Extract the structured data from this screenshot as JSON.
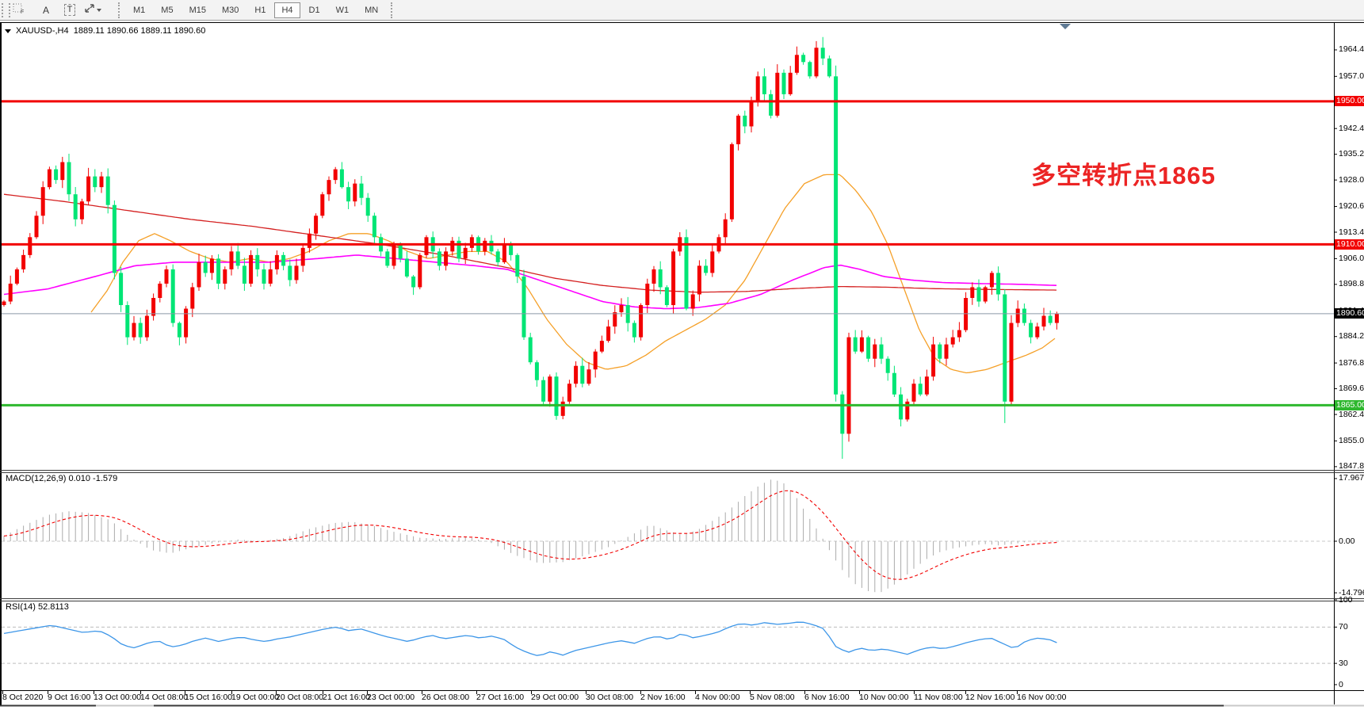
{
  "toolbar": {
    "tool_a_label": "A",
    "tool_t_label": "T",
    "timeframes": [
      "M1",
      "M5",
      "M15",
      "M30",
      "H1",
      "H4",
      "D1",
      "W1",
      "MN"
    ],
    "active_timeframe": "H4"
  },
  "window": {
    "symbol_header": "XAUUSD-,H4  1889.11 1890.66 1889.11 1890.60"
  },
  "annotation": {
    "text": "多空转折点1865",
    "color": "#ec2424"
  },
  "indicators": {
    "macd_label": "MACD(12,26,9) 0.010 -1.579",
    "rsi_label": "RSI(14) 52.8113"
  },
  "axes": {
    "price_ticks": [
      "1964.40",
      "1957.00",
      "1942.40",
      "1935.20",
      "1928.00",
      "1920.60",
      "1913.40",
      "1906.00",
      "1898.80",
      "1891.40",
      "1884.20",
      "1876.80",
      "1869.60",
      "1862.40",
      "1855.00",
      "1847.80"
    ],
    "macd_ticks": [
      "17.967",
      "0.00",
      "-14.796"
    ],
    "rsi_ticks": [
      "100",
      "70",
      "30",
      "0"
    ],
    "dates": [
      "8 Oct 2020",
      "9 Oct 16:00",
      "13 Oct 00:00",
      "14 Oct 08:00",
      "15 Oct 16:00",
      "19 Oct 00:00",
      "20 Oct 08:00",
      "21 Oct 16:00",
      "23 Oct 00:00",
      "26 Oct 08:00",
      "27 Oct 16:00",
      "29 Oct 00:00",
      "30 Oct 08:00",
      "2 Nov 16:00",
      "4 Nov 00:00",
      "5 Nov 08:00",
      "6 Nov 16:00",
      "10 Nov 00:00",
      "11 Nov 08:00",
      "12 Nov 16:00",
      "16 Nov 00:00"
    ],
    "dates_x": [
      3,
      60,
      118,
      177,
      233,
      292,
      348,
      407,
      463,
      532,
      601,
      670,
      739,
      808,
      877,
      946,
      1015,
      1084,
      1153,
      1218,
      1283
    ]
  },
  "badges": [
    {
      "label": "1950.00",
      "price": 1950,
      "color": "#f20000"
    },
    {
      "label": "1910.00",
      "price": 1910,
      "color": "#f20000"
    },
    {
      "label": "1890.60",
      "price": 1890.6,
      "color": "#000000"
    },
    {
      "label": "1865.00",
      "price": 1865,
      "color": "#2eb82e"
    }
  ],
  "chart_data": {
    "type": "candlestick",
    "symbol": "XAUUSD-",
    "timeframe": "H4",
    "ohlc_header": {
      "open": "1889.11",
      "high": "1890.66",
      "low": "1889.11",
      "close": "1890.60"
    },
    "up_color": "#f20000",
    "down_color": "#00e575",
    "closes": [
      1894,
      1899,
      1903,
      1907,
      1912,
      1918,
      1926,
      1931,
      1928,
      1933,
      1924,
      1917,
      1922,
      1929,
      1926,
      1929,
      1921,
      1902,
      1893,
      1884,
      1888,
      1884,
      1890,
      1895,
      1899,
      1903,
      1888,
      1884,
      1892,
      1898,
      1905,
      1902,
      1906,
      1899,
      1903,
      1908,
      1904,
      1899,
      1907,
      1903,
      1899,
      1903,
      1907,
      1904,
      1900,
      1904,
      1909,
      1913,
      1918,
      1924,
      1928,
      1931,
      1926,
      1922,
      1927,
      1923,
      1918,
      1912,
      1908,
      1904,
      1910,
      1906,
      1901,
      1898,
      1907,
      1912,
      1908,
      1904,
      1908,
      1911,
      1906,
      1909,
      1912,
      1908,
      1911,
      1908,
      1905,
      1910,
      1907,
      1901,
      1884,
      1877,
      1872,
      1866,
      1873,
      1862,
      1866,
      1871,
      1876,
      1871,
      1875,
      1880,
      1883,
      1887,
      1891,
      1893,
      1888,
      1884,
      1893,
      1899,
      1903,
      1898,
      1893,
      1908,
      1912,
      1892,
      1896,
      1904,
      1902,
      1908,
      1912,
      1917,
      1938,
      1946,
      1943,
      1950,
      1957,
      1952,
      1946,
      1958,
      1952,
      1958,
      1963,
      1961,
      1957,
      1965,
      1962,
      1957,
      1868,
      1857,
      1884,
      1880,
      1884,
      1878,
      1882,
      1878,
      1874,
      1868,
      1861,
      1866,
      1871,
      1868,
      1873,
      1882,
      1878,
      1882,
      1884,
      1886,
      1895,
      1898,
      1894,
      1898,
      1902,
      1896,
      1866,
      1888,
      1892,
      1888,
      1884,
      1887,
      1890,
      1888,
      1890.6
    ],
    "candle_overrides": {
      "126": {
        "high": 1968
      },
      "128": {
        "open": 1957,
        "high": 1960,
        "low": 1866
      },
      "129": {
        "low": 1850
      },
      "154": {
        "low": 1860
      }
    },
    "hlines": [
      {
        "price": 1950,
        "color": "#f20000",
        "width": 3
      },
      {
        "price": 1910,
        "color": "#f20000",
        "width": 3
      },
      {
        "price": 1865,
        "color": "#2eb82e",
        "width": 3
      },
      {
        "price": 1890.6,
        "color": "#8a99a8",
        "width": 1
      }
    ],
    "overlays": [
      {
        "name": "ma-orange",
        "color": "#f5a028",
        "width": 1.3,
        "points": [
          [
            115,
            1891
          ],
          [
            135,
            1897
          ],
          [
            155,
            1905
          ],
          [
            175,
            1911
          ],
          [
            195,
            1913
          ],
          [
            215,
            1911
          ],
          [
            240,
            1908
          ],
          [
            265,
            1906
          ],
          [
            290,
            1905
          ],
          [
            315,
            1906
          ],
          [
            340,
            1905
          ],
          [
            365,
            1906
          ],
          [
            390,
            1908
          ],
          [
            415,
            1911
          ],
          [
            440,
            1913
          ],
          [
            465,
            1913
          ],
          [
            490,
            1911
          ],
          [
            515,
            1908
          ],
          [
            540,
            1906
          ],
          [
            565,
            1907
          ],
          [
            590,
            1908
          ],
          [
            615,
            1908
          ],
          [
            640,
            1905
          ],
          [
            665,
            1898
          ],
          [
            690,
            1889
          ],
          [
            715,
            1882
          ],
          [
            740,
            1877
          ],
          [
            765,
            1875
          ],
          [
            790,
            1876
          ],
          [
            815,
            1879
          ],
          [
            840,
            1883
          ],
          [
            865,
            1886
          ],
          [
            890,
            1889
          ],
          [
            915,
            1893
          ],
          [
            940,
            1900
          ],
          [
            965,
            1910
          ],
          [
            990,
            1920
          ],
          [
            1015,
            1927
          ],
          [
            1040,
            1929.5
          ],
          [
            1060,
            1929.5
          ],
          [
            1080,
            1925
          ],
          [
            1100,
            1919
          ],
          [
            1120,
            1910
          ],
          [
            1140,
            1898
          ],
          [
            1160,
            1886
          ],
          [
            1180,
            1878
          ],
          [
            1200,
            1875
          ],
          [
            1220,
            1874
          ],
          [
            1245,
            1875
          ],
          [
            1270,
            1877
          ],
          [
            1295,
            1879
          ],
          [
            1315,
            1881
          ],
          [
            1333,
            1884
          ]
        ]
      },
      {
        "name": "ma-magenta",
        "color": "#ff00ff",
        "width": 1.6,
        "points": [
          [
            5,
            1896
          ],
          [
            60,
            1897.5
          ],
          [
            120,
            1901
          ],
          [
            170,
            1904
          ],
          [
            220,
            1905
          ],
          [
            280,
            1905
          ],
          [
            340,
            1905
          ],
          [
            400,
            1906
          ],
          [
            450,
            1907
          ],
          [
            500,
            1906
          ],
          [
            550,
            1905
          ],
          [
            600,
            1904
          ],
          [
            640,
            1903
          ],
          [
            680,
            1900
          ],
          [
            720,
            1897
          ],
          [
            760,
            1894
          ],
          [
            800,
            1892.5
          ],
          [
            840,
            1892
          ],
          [
            880,
            1892.3
          ],
          [
            920,
            1893.5
          ],
          [
            960,
            1896
          ],
          [
            1000,
            1900
          ],
          [
            1040,
            1903.5
          ],
          [
            1060,
            1904.2
          ],
          [
            1085,
            1903
          ],
          [
            1115,
            1901
          ],
          [
            1150,
            1900
          ],
          [
            1190,
            1899.3
          ],
          [
            1240,
            1899
          ],
          [
            1290,
            1898.8
          ],
          [
            1333,
            1898.5
          ]
        ]
      },
      {
        "name": "ma-darkred",
        "color": "#d42020",
        "width": 1.3,
        "points": [
          [
            5,
            1924
          ],
          [
            80,
            1922
          ],
          [
            160,
            1919.5
          ],
          [
            240,
            1917
          ],
          [
            320,
            1915
          ],
          [
            400,
            1912.5
          ],
          [
            480,
            1910
          ],
          [
            560,
            1907
          ],
          [
            640,
            1903.5
          ],
          [
            700,
            1900.5
          ],
          [
            760,
            1898.5
          ],
          [
            820,
            1897.2
          ],
          [
            880,
            1896.6
          ],
          [
            940,
            1896.8
          ],
          [
            1000,
            1897.6
          ],
          [
            1060,
            1898.2
          ],
          [
            1120,
            1898
          ],
          [
            1180,
            1897.6
          ],
          [
            1240,
            1897.4
          ],
          [
            1333,
            1897.2
          ]
        ]
      }
    ],
    "macd": {
      "range": {
        "max": 17.967,
        "min": -14.796
      },
      "hist_color": "#ababab",
      "signal_color": "#f20000",
      "signal_ema_alpha": 0.2,
      "waypoints": [
        [
          5,
          1.5
        ],
        [
          30,
          4.5
        ],
        [
          60,
          7.5
        ],
        [
          85,
          8.6
        ],
        [
          110,
          8.2
        ],
        [
          140,
          6
        ],
        [
          165,
          1
        ],
        [
          190,
          -2.5
        ],
        [
          215,
          -3.5
        ],
        [
          240,
          -2
        ],
        [
          270,
          -0.5
        ],
        [
          300,
          0.5
        ],
        [
          330,
          0
        ],
        [
          360,
          1
        ],
        [
          390,
          3.5
        ],
        [
          420,
          5.2
        ],
        [
          445,
          5.6
        ],
        [
          470,
          4.5
        ],
        [
          500,
          2.5
        ],
        [
          530,
          1
        ],
        [
          560,
          0.6
        ],
        [
          590,
          1.2
        ],
        [
          620,
          -0.5
        ],
        [
          650,
          -4
        ],
        [
          680,
          -6.3
        ],
        [
          710,
          -6
        ],
        [
          740,
          -4
        ],
        [
          770,
          -1.5
        ],
        [
          800,
          2.2
        ],
        [
          820,
          4.8
        ],
        [
          840,
          3.2
        ],
        [
          860,
          1.8
        ],
        [
          880,
          3.2
        ],
        [
          900,
          6
        ],
        [
          920,
          9
        ],
        [
          940,
          13
        ],
        [
          960,
          16.3
        ],
        [
          975,
          17.9
        ],
        [
          990,
          16.5
        ],
        [
          1005,
          12.5
        ],
        [
          1020,
          7
        ],
        [
          1035,
          2
        ],
        [
          1050,
          -4
        ],
        [
          1065,
          -9
        ],
        [
          1080,
          -12.5
        ],
        [
          1095,
          -14.3
        ],
        [
          1110,
          -14.8
        ],
        [
          1125,
          -13
        ],
        [
          1140,
          -10.5
        ],
        [
          1155,
          -7.5
        ],
        [
          1170,
          -5
        ],
        [
          1185,
          -3.2
        ],
        [
          1200,
          -2.2
        ],
        [
          1215,
          -1.6
        ],
        [
          1230,
          -1.1
        ],
        [
          1245,
          -0.8
        ],
        [
          1260,
          -1.2
        ],
        [
          1275,
          -0.9
        ],
        [
          1290,
          -0.4
        ],
        [
          1305,
          0.1
        ],
        [
          1320,
          0.05
        ],
        [
          1333,
          0.01
        ]
      ]
    },
    "rsi": {
      "color": "#3d96e8",
      "levels": [
        70,
        30
      ],
      "waypoints": [
        [
          5,
          63
        ],
        [
          25,
          66
        ],
        [
          45,
          69
        ],
        [
          65,
          72
        ],
        [
          85,
          68
        ],
        [
          105,
          64
        ],
        [
          125,
          66
        ],
        [
          140,
          60
        ],
        [
          155,
          50
        ],
        [
          170,
          47
        ],
        [
          185,
          52
        ],
        [
          200,
          55
        ],
        [
          215,
          48
        ],
        [
          230,
          50
        ],
        [
          245,
          55
        ],
        [
          260,
          58
        ],
        [
          275,
          54
        ],
        [
          290,
          57
        ],
        [
          305,
          59
        ],
        [
          320,
          56
        ],
        [
          335,
          54
        ],
        [
          350,
          57
        ],
        [
          365,
          59
        ],
        [
          380,
          62
        ],
        [
          395,
          65
        ],
        [
          410,
          68
        ],
        [
          425,
          70
        ],
        [
          440,
          66
        ],
        [
          455,
          68
        ],
        [
          470,
          64
        ],
        [
          485,
          60
        ],
        [
          500,
          57
        ],
        [
          515,
          54
        ],
        [
          530,
          58
        ],
        [
          545,
          61
        ],
        [
          560,
          57
        ],
        [
          575,
          59
        ],
        [
          590,
          61
        ],
        [
          605,
          58
        ],
        [
          620,
          60
        ],
        [
          635,
          57
        ],
        [
          650,
          48
        ],
        [
          665,
          42
        ],
        [
          680,
          38
        ],
        [
          695,
          43
        ],
        [
          710,
          39
        ],
        [
          725,
          44
        ],
        [
          740,
          47
        ],
        [
          755,
          50
        ],
        [
          770,
          53
        ],
        [
          785,
          55
        ],
        [
          800,
          52
        ],
        [
          815,
          57
        ],
        [
          830,
          60
        ],
        [
          845,
          56
        ],
        [
          860,
          63
        ],
        [
          875,
          58
        ],
        [
          890,
          61
        ],
        [
          905,
          64
        ],
        [
          920,
          70
        ],
        [
          935,
          74
        ],
        [
          950,
          72
        ],
        [
          965,
          75
        ],
        [
          980,
          73
        ],
        [
          995,
          74
        ],
        [
          1010,
          76
        ],
        [
          1025,
          73
        ],
        [
          1040,
          68
        ],
        [
          1055,
          48
        ],
        [
          1070,
          42
        ],
        [
          1085,
          47
        ],
        [
          1100,
          44
        ],
        [
          1115,
          46
        ],
        [
          1130,
          43
        ],
        [
          1145,
          40
        ],
        [
          1160,
          45
        ],
        [
          1175,
          48
        ],
        [
          1190,
          46
        ],
        [
          1205,
          49
        ],
        [
          1220,
          53
        ],
        [
          1235,
          56
        ],
        [
          1250,
          58
        ],
        [
          1265,
          52
        ],
        [
          1280,
          46
        ],
        [
          1295,
          55
        ],
        [
          1310,
          58
        ],
        [
          1325,
          56
        ],
        [
          1333,
          52.8
        ]
      ]
    }
  }
}
